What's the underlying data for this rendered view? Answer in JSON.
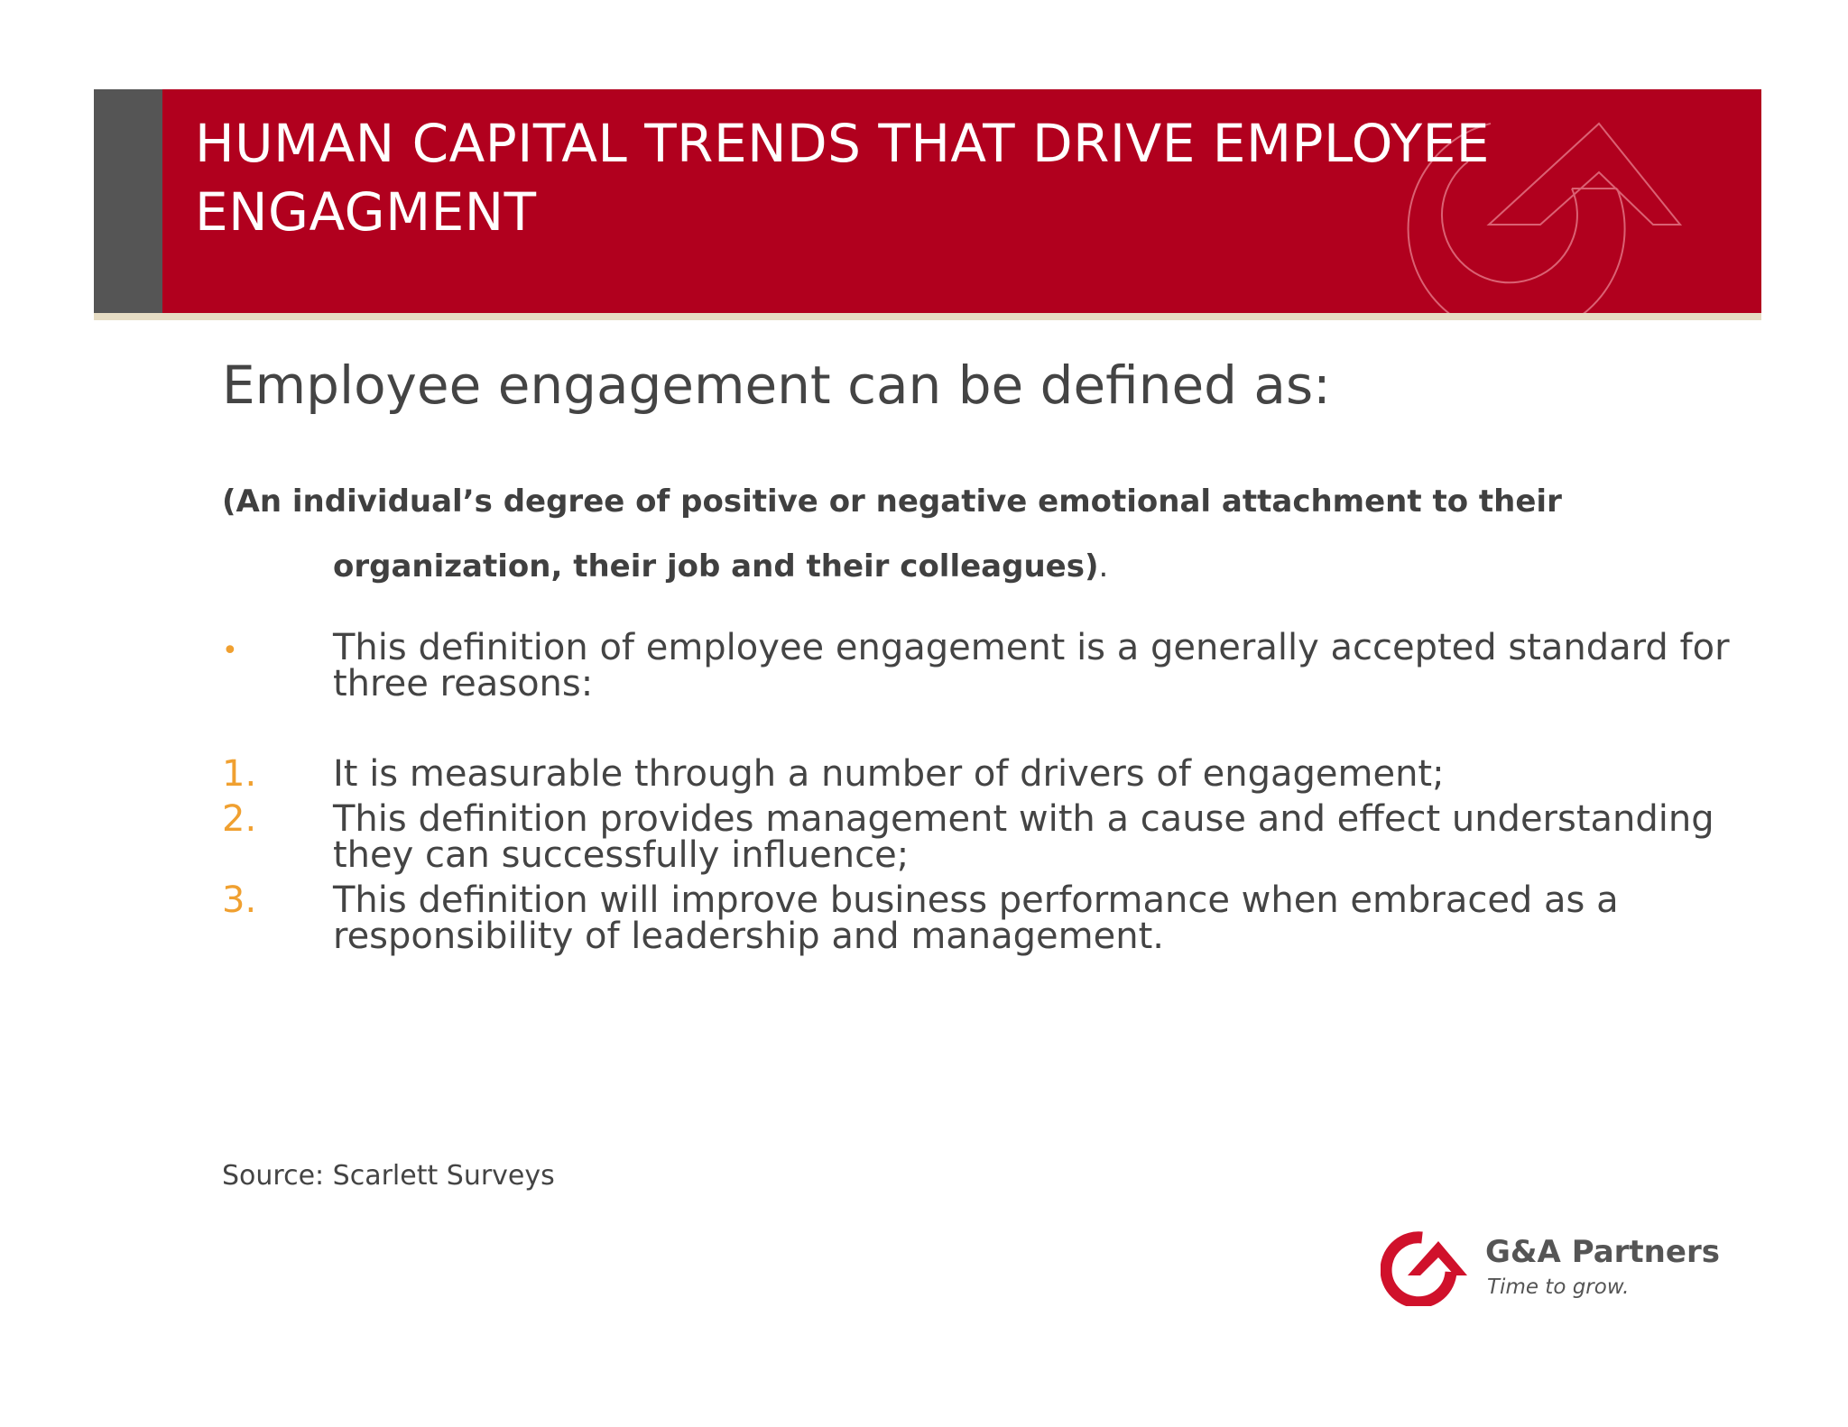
{
  "header": {
    "title": "HUMAN CAPITAL TRENDS THAT DRIVE EMPLOYEE ENGAGMENT"
  },
  "subtitle": "Employee engagement can be defined as:",
  "definition": {
    "line1": "(An individual’s degree of positive or negative emotional attachment to their",
    "line2": "organization, their job and their colleagues)",
    "trailing_period": "."
  },
  "bullet": {
    "marker": "•",
    "text": "This definition of employee engagement is a generally accepted standard for three reasons:"
  },
  "reasons": [
    {
      "number": "1.",
      "text": "It is measurable through a number of drivers of engagement;"
    },
    {
      "number": "2.",
      "text": "This definition provides management with a cause and effect understanding they can successfully influence;"
    },
    {
      "number": "3.",
      "text": "This definition will improve business performance when embraced as a responsibility of leadership and management."
    }
  ],
  "source": "Source: Scarlett Surveys",
  "logo": {
    "name": "G&A Partners",
    "tagline": "Time to grow.",
    "icon": "ga-partners-logo-icon"
  },
  "colors": {
    "header_red": "#b1001e",
    "header_accent_gray": "#555555",
    "underline_beige": "#e6dcc4",
    "marker_orange": "#f0a030",
    "body_text": "#444444",
    "logo_red": "#d0112b"
  }
}
